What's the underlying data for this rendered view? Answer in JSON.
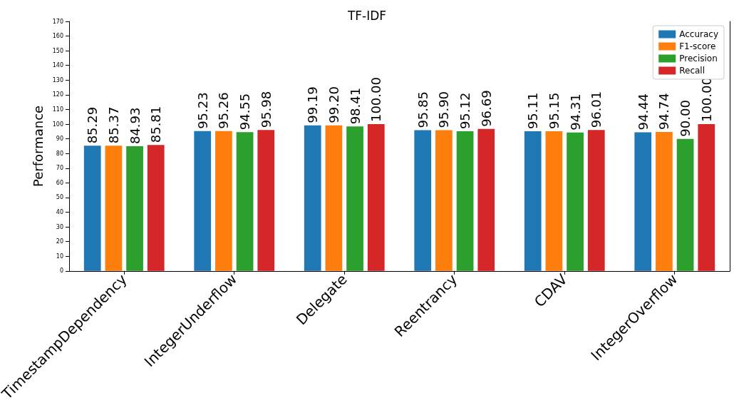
{
  "chart_data": {
    "type": "bar",
    "title": "TF-IDF",
    "ylabel": "Performance",
    "categories": [
      "TimestampDependency",
      "IntegerUnderflow",
      "Delegate",
      "Reentrancy",
      "CDAV",
      "IntegerOverflow"
    ],
    "series": [
      {
        "name": "Accuracy",
        "color": "#1f77b4",
        "values": [
          85.29,
          95.23,
          99.19,
          95.85,
          95.11,
          94.44
        ],
        "value_labels": [
          "85.29",
          "95.23",
          "99.19",
          "95.85",
          "95.11",
          "94.44"
        ]
      },
      {
        "name": "F1-score",
        "color": "#ff7f0e",
        "values": [
          85.37,
          95.26,
          99.2,
          95.9,
          95.15,
          94.74
        ],
        "value_labels": [
          "85.37",
          "95.26",
          "99.20",
          "95.90",
          "95.15",
          "94.74"
        ]
      },
      {
        "name": "Precision",
        "color": "#2ca02c",
        "values": [
          84.93,
          94.55,
          98.41,
          95.12,
          94.31,
          90.0
        ],
        "value_labels": [
          "84.93",
          "94.55",
          "98.41",
          "95.12",
          "94.31",
          "90.00"
        ]
      },
      {
        "name": "Recall",
        "color": "#d62728",
        "values": [
          85.81,
          95.98,
          100.0,
          96.69,
          96.01,
          100.0
        ],
        "value_labels": [
          "85.81",
          "95.98",
          "100.00",
          "96.69",
          "96.01",
          "100.00"
        ]
      }
    ],
    "ylim": [
      0,
      170
    ],
    "yticks": [
      0,
      10,
      20,
      30,
      40,
      50,
      60,
      70,
      80,
      90,
      100,
      110,
      120,
      130,
      140,
      150,
      160,
      170
    ],
    "grid": false,
    "legend": "top right"
  }
}
